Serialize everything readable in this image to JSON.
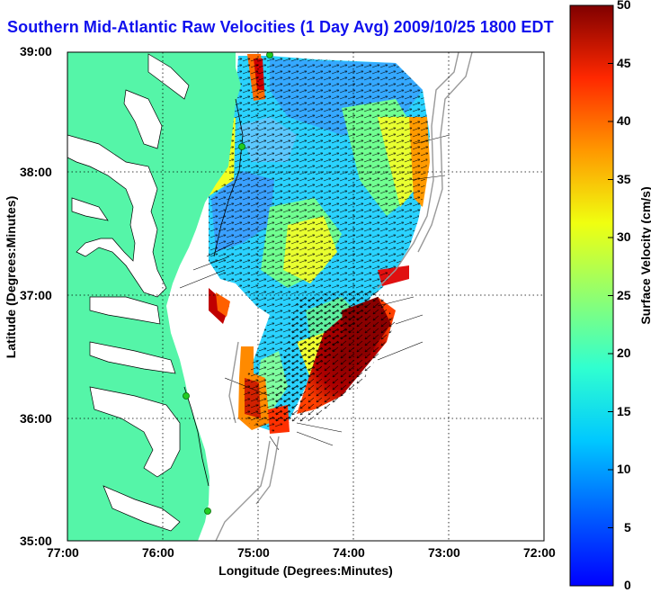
{
  "title": "Southern Mid-Atlantic Raw Velocities (1 Day Avg) 2009/10/25 1800 EDT",
  "axes": {
    "xlabel": "Longitude (Degrees:Minutes)",
    "ylabel": "Latitude (Degrees:Minutes)",
    "xticks": [
      "77:00",
      "76:00",
      "75:00",
      "74:00",
      "73:00",
      "72:00"
    ],
    "yticks": [
      "39:00",
      "38:00",
      "37:00",
      "36:00",
      "35:00"
    ]
  },
  "colorbar": {
    "label": "Surface Velocity (cm/s)",
    "ticks": [
      "0",
      "5",
      "10",
      "15",
      "20",
      "25",
      "30",
      "35",
      "40",
      "45",
      "50"
    ],
    "min": 0,
    "max": 50
  },
  "colors": {
    "land": "#55f5a8",
    "water": "#ffffff",
    "title": "#1010ee",
    "stations": "#22cc22",
    "bathymetry": "#999999"
  }
}
